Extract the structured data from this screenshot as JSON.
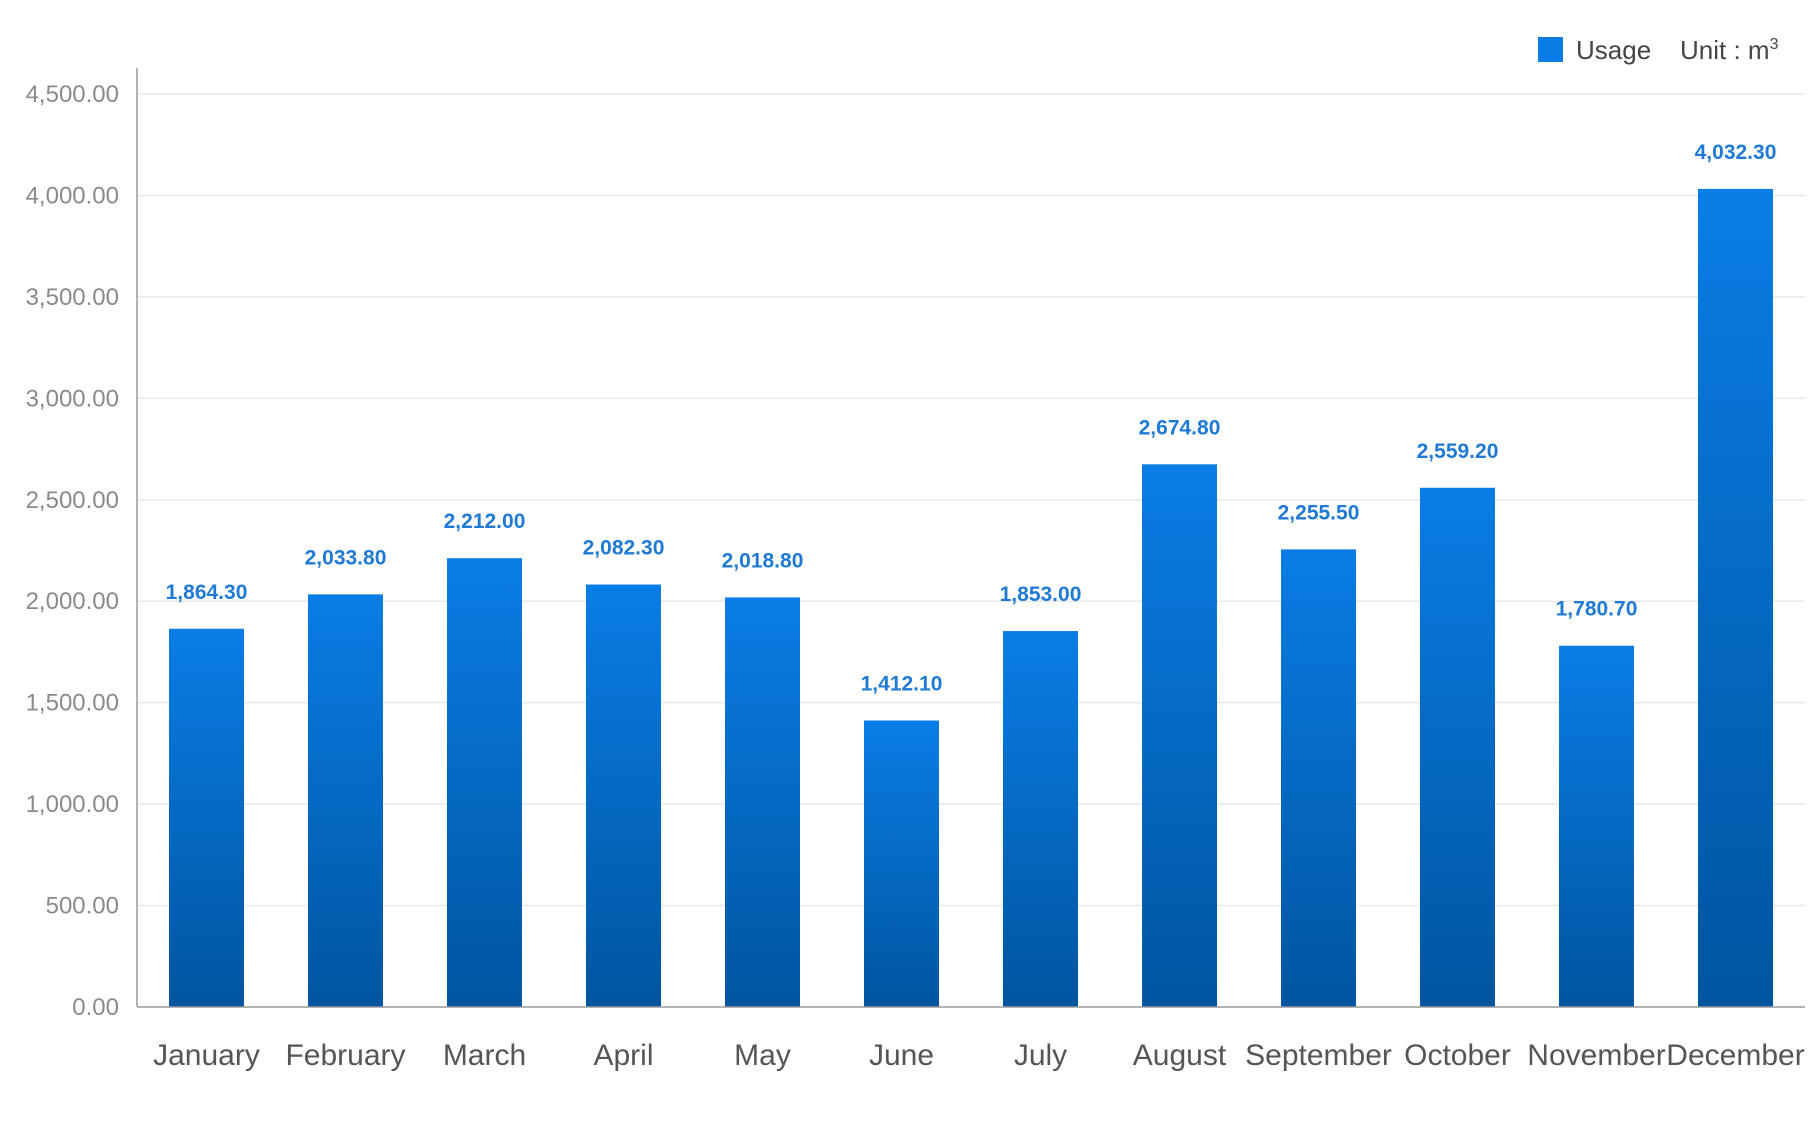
{
  "chart_data": {
    "type": "bar",
    "categories": [
      "January",
      "February",
      "March",
      "April",
      "May",
      "June",
      "July",
      "August",
      "September",
      "October",
      "November",
      "December"
    ],
    "series": [
      {
        "name": "Usage",
        "values": [
          1864.3,
          2033.8,
          2212.0,
          2082.3,
          2018.8,
          1412.1,
          1853.0,
          2674.8,
          2255.5,
          2559.2,
          1780.7,
          4032.3
        ]
      }
    ],
    "value_labels": [
      "1,864.30",
      "2,033.80",
      "2,212.00",
      "2,082.30",
      "2,018.80",
      "1,412.10",
      "1,853.00",
      "2,674.80",
      "2,255.50",
      "2,559.20",
      "1,780.70",
      "4,032.30"
    ],
    "y_ticks": [
      0,
      500,
      1000,
      1500,
      2000,
      2500,
      3000,
      3500,
      4000,
      4500
    ],
    "y_tick_labels": [
      "0.00",
      "500.00",
      "1,000.00",
      "1,500.00",
      "2,000.00",
      "2,500.00",
      "3,000.00",
      "3,500.00",
      "4,000.00",
      "4,500.00"
    ],
    "ylim": [
      0,
      4500
    ],
    "grid": true,
    "legend_position": "top-right",
    "unit_prefix": "Unit : m",
    "unit_superscript": "3",
    "colors": {
      "bar_top": "#0a7de6",
      "bar_bottom": "#0055a0",
      "label": "#1f7ad6",
      "grid": "#e8e8e8",
      "axis": "#9a9a9a"
    }
  }
}
